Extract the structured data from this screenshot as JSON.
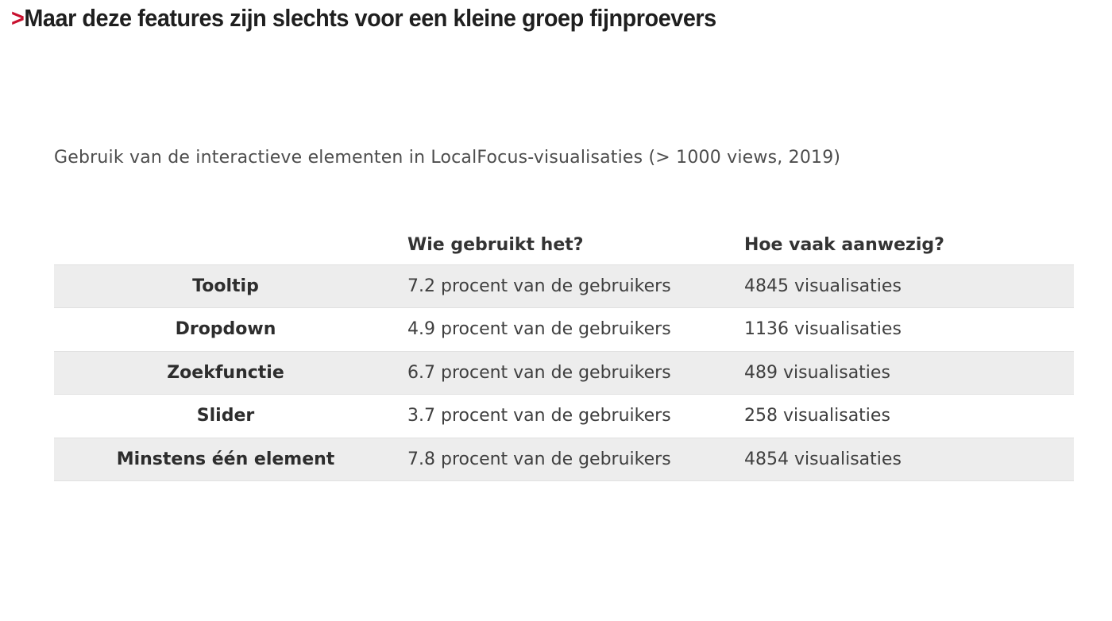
{
  "heading": {
    "accent": ">",
    "text": "Maar deze features zijn slechts voor een kleine groep fijnproevers"
  },
  "chart_data": {
    "type": "table",
    "title": "Gebruik van de interactieve elementen in LocalFocus-visualisaties (> 1000 views, 2019)",
    "columns": [
      "",
      "Wie gebruikt het?",
      "Hoe vaak aanwezig?"
    ],
    "rows": [
      {
        "label": "Tooltip",
        "usage": "7.2 procent van de gebruikers",
        "presence": "4845 visualisaties"
      },
      {
        "label": "Dropdown",
        "usage": "4.9 procent van de gebruikers",
        "presence": "1136 visualisaties"
      },
      {
        "label": "Zoekfunctie",
        "usage": "6.7 procent van de gebruikers",
        "presence": "489 visualisaties"
      },
      {
        "label": "Slider",
        "usage": "3.7 procent van de gebruikers",
        "presence": "258 visualisaties"
      },
      {
        "label": "Minstens één element",
        "usage": "7.8 procent van de gebruikers",
        "presence": "4854 visualisaties"
      }
    ],
    "numeric": {
      "categories": [
        "Tooltip",
        "Dropdown",
        "Zoekfunctie",
        "Slider",
        "Minstens één element"
      ],
      "usage_percent_of_users": [
        7.2,
        4.9,
        6.7,
        3.7,
        7.8
      ],
      "presence_visualisaties": [
        4845,
        1136,
        489,
        258,
        4854
      ]
    },
    "layout": {
      "striped_rows": "1,3,5",
      "stripe_color": "#ededed",
      "stripe_border_color": "#e0e0e0",
      "grid": false,
      "legend": false
    }
  },
  "colors": {
    "background": "#ffffff",
    "heading_text": "#1f1f1f",
    "accent_red": "#c8102e",
    "title_gray": "#4d4d4d",
    "header_text": "#333333",
    "label_text": "#2d2d2d",
    "cell_text": "#3f3f3f"
  }
}
